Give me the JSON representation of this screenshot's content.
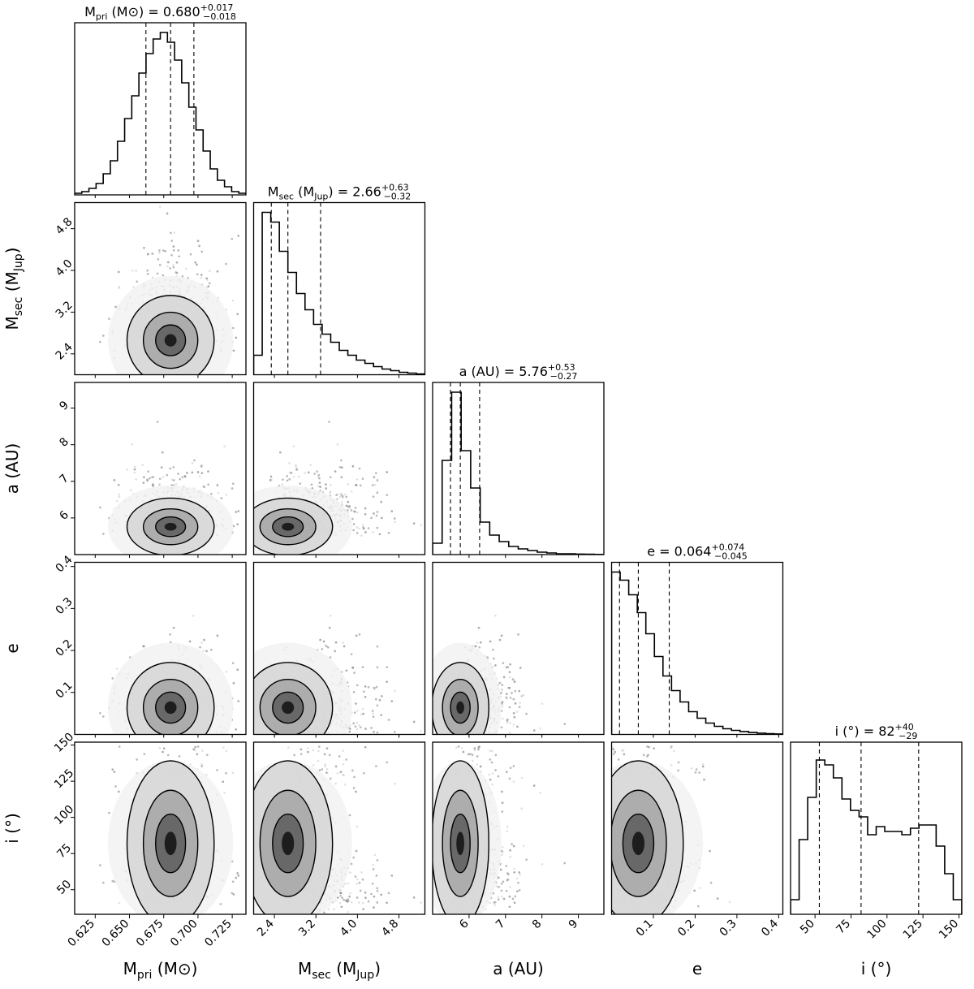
{
  "chart_data": {
    "type": "corner",
    "parameters": [
      {
        "key": "mpri",
        "label_main": "M",
        "label_sub": "pri",
        "label_unit": " (M⊙)",
        "range": [
          0.61,
          0.735
        ],
        "ticks": [
          "0.625",
          "0.650",
          "0.675",
          "0.700",
          "0.725"
        ],
        "tick_values": [
          0.625,
          0.65,
          0.675,
          0.7,
          0.725
        ],
        "title": {
          "prefix": "M",
          "sub": "pri",
          "rest": " (M⊙) = 0.680",
          "plus": "+0.017",
          "minus": "−0.018"
        },
        "quantiles": [
          0.662,
          0.68,
          0.697
        ],
        "hist": [
          0.01,
          0.02,
          0.04,
          0.07,
          0.13,
          0.21,
          0.33,
          0.47,
          0.61,
          0.75,
          0.87,
          0.96,
          1.0,
          0.94,
          0.83,
          0.69,
          0.54,
          0.4,
          0.27,
          0.16,
          0.09,
          0.05,
          0.02,
          0.01
        ]
      },
      {
        "key": "msec",
        "label_main": "M",
        "label_sub": "sec",
        "label_unit": " (M",
        "label_unit_sub": "Jup",
        "label_tail": ")",
        "range": [
          2.0,
          5.3
        ],
        "ticks": [
          "2.4",
          "3.2",
          "4.0",
          "4.8"
        ],
        "tick_values": [
          2.4,
          3.2,
          4.0,
          4.8
        ],
        "title": {
          "prefix": "M",
          "sub": "sec",
          "rest": " (M",
          "rest_sub": "Jup",
          "rest_tail": ") = 2.66",
          "plus": "+0.63",
          "minus": "−0.32"
        },
        "quantiles": [
          2.34,
          2.66,
          3.29
        ],
        "hist": [
          0.12,
          1.0,
          0.94,
          0.76,
          0.63,
          0.5,
          0.4,
          0.31,
          0.25,
          0.2,
          0.15,
          0.12,
          0.09,
          0.07,
          0.05,
          0.035,
          0.025,
          0.015,
          0.01,
          0.005
        ]
      },
      {
        "key": "a",
        "label_main": "a (AU)",
        "range": [
          5.0,
          9.7
        ],
        "ticks": [
          "6",
          "7",
          "8",
          "9"
        ],
        "tick_values": [
          6,
          7,
          8,
          9
        ],
        "title": {
          "prefix": "a (AU) = 5.76",
          "plus": "+0.53",
          "minus": "−0.27"
        },
        "quantiles": [
          5.49,
          5.76,
          6.29
        ],
        "hist": [
          0.07,
          0.58,
          1.0,
          0.64,
          0.41,
          0.2,
          0.12,
          0.08,
          0.05,
          0.035,
          0.025,
          0.015,
          0.01,
          0.005,
          0.005,
          0.003,
          0.002,
          0.001
        ]
      },
      {
        "key": "e",
        "label_main": "e",
        "range": [
          0.0,
          0.41
        ],
        "ticks": [
          "0.1",
          "0.2",
          "0.3",
          "0.4"
        ],
        "tick_values": [
          0.1,
          0.2,
          0.3,
          0.4
        ],
        "title": {
          "prefix": "e = 0.064",
          "plus": "+0.074",
          "minus": "−0.045"
        },
        "quantiles": [
          0.019,
          0.064,
          0.138
        ],
        "hist": [
          1.0,
          0.95,
          0.86,
          0.75,
          0.62,
          0.48,
          0.36,
          0.27,
          0.2,
          0.14,
          0.1,
          0.07,
          0.05,
          0.035,
          0.025,
          0.018,
          0.012,
          0.008,
          0.005,
          0.003
        ]
      },
      {
        "key": "i",
        "label_main": "i (°)",
        "range": [
          33,
          152
        ],
        "ticks": [
          "50",
          "75",
          "100",
          "125",
          "150"
        ],
        "tick_values": [
          50,
          75,
          100,
          125,
          150
        ],
        "title": {
          "prefix": "i (°) = 82",
          "plus": "+40",
          "minus": "−29"
        },
        "quantiles": [
          53,
          82,
          122
        ],
        "hist": [
          0.09,
          0.46,
          0.72,
          0.95,
          0.92,
          0.84,
          0.71,
          0.64,
          0.6,
          0.49,
          0.54,
          0.51,
          0.51,
          0.49,
          0.53,
          0.55,
          0.55,
          0.42,
          0.25,
          0.09
        ]
      }
    ],
    "y_tick_labels": {
      "msec": [
        "4.8",
        "4.0",
        "3.2",
        "2.4"
      ],
      "a": [
        "9",
        "8",
        "7",
        "6"
      ],
      "e": [
        "0.4",
        "0.3",
        "0.2",
        "0.1"
      ],
      "i": [
        "150",
        "125",
        "100",
        "75",
        "50"
      ]
    }
  }
}
